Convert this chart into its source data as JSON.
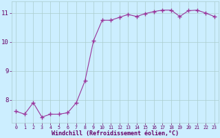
{
  "x": [
    0,
    1,
    2,
    3,
    4,
    5,
    6,
    7,
    8,
    9,
    10,
    11,
    12,
    13,
    14,
    15,
    16,
    17,
    18,
    19,
    20,
    21,
    22,
    23
  ],
  "y": [
    7.6,
    7.5,
    7.9,
    7.4,
    7.5,
    7.5,
    7.55,
    7.9,
    8.65,
    10.05,
    10.75,
    10.75,
    10.85,
    10.95,
    10.88,
    10.98,
    11.05,
    11.1,
    11.1,
    10.88,
    11.08,
    11.1,
    11.0,
    10.88
  ],
  "line_color": "#993399",
  "marker": "+",
  "marker_size": 4,
  "marker_linewidth": 1.0,
  "line_width": 0.8,
  "background_color": "#cceeff",
  "grid_color": "#aacccc",
  "xlabel": "Windchill (Refroidissement éolien,°C)",
  "xlabel_color": "#660066",
  "tick_color": "#660066",
  "ylim": [
    7.2,
    11.4
  ],
  "xlim": [
    -0.5,
    23.5
  ],
  "yticks": [
    8,
    9,
    10,
    11
  ],
  "xticks": [
    0,
    1,
    2,
    3,
    4,
    5,
    6,
    7,
    8,
    9,
    10,
    11,
    12,
    13,
    14,
    15,
    16,
    17,
    18,
    19,
    20,
    21,
    22,
    23
  ],
  "xtick_fontsize": 4.8,
  "ytick_fontsize": 6.5,
  "xlabel_fontsize": 6.0
}
